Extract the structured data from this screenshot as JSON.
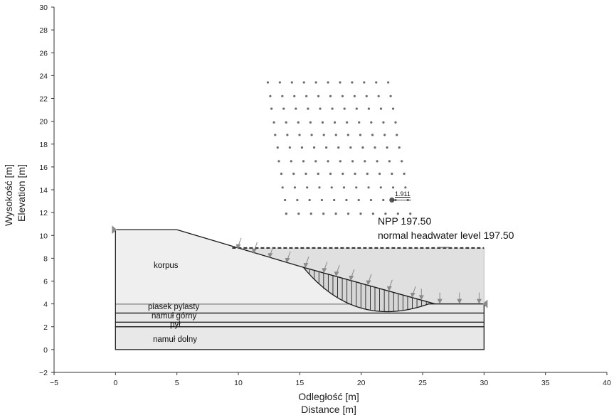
{
  "chart_data": {
    "type": "diagram",
    "x_axis": {
      "labels": [
        "Odległość [m]",
        "Distance [m]"
      ],
      "range": [
        -5,
        40
      ],
      "ticks": [
        -5,
        0,
        5,
        10,
        15,
        20,
        25,
        30,
        35,
        40
      ]
    },
    "y_axis": {
      "labels": [
        "Wysokość [m]",
        "Elevation [m]"
      ],
      "range": [
        -2,
        30
      ],
      "ticks": [
        -2,
        0,
        2,
        4,
        6,
        8,
        10,
        12,
        14,
        16,
        18,
        20,
        22,
        24,
        26,
        28,
        30
      ]
    },
    "layers": [
      {
        "name": "namuł dolny",
        "top": 2.0,
        "bottom": 0.0
      },
      {
        "name": "pył",
        "top": 2.4,
        "bottom": 2.0
      },
      {
        "name": "namuł górny",
        "top": 3.2,
        "bottom": 2.4
      },
      {
        "name": "piasek pylasty",
        "top": 4.0,
        "bottom": 3.2
      },
      {
        "name": "korpus",
        "top": 10.5,
        "bottom": 4.0
      }
    ],
    "dam_outline": [
      [
        0,
        10.5
      ],
      [
        5,
        10.5
      ],
      [
        15.3,
        7.2
      ],
      [
        26,
        4.0
      ],
      [
        30,
        4.0
      ]
    ],
    "water_level": {
      "elevation": 8.9,
      "x_range": [
        9.5,
        30
      ],
      "labels": [
        "NPP 197.50",
        "normal headwater level 197.50"
      ]
    },
    "slip_surface": {
      "entry": [
        15.3,
        7.2
      ],
      "exit": [
        25.5,
        4.0
      ],
      "factor_of_safety": "1.911",
      "center": [
        22.5,
        13.1
      ]
    },
    "slip_centers_grid": {
      "rows": [
        {
          "y": 23.4,
          "x_start": 12.4,
          "x_end": 22.2
        },
        {
          "y": 22.2,
          "x_start": 12.6,
          "x_end": 22.4
        },
        {
          "y": 21.1,
          "x_start": 12.7,
          "x_end": 22.6
        },
        {
          "y": 19.9,
          "x_start": 12.9,
          "x_end": 22.8
        },
        {
          "y": 18.8,
          "x_start": 13.0,
          "x_end": 22.9
        },
        {
          "y": 17.7,
          "x_start": 13.2,
          "x_end": 23.1
        },
        {
          "y": 16.5,
          "x_start": 13.3,
          "x_end": 23.3
        },
        {
          "y": 15.4,
          "x_start": 13.5,
          "x_end": 23.5
        },
        {
          "y": 14.2,
          "x_start": 13.6,
          "x_end": 23.6
        },
        {
          "y": 13.1,
          "x_start": 13.8,
          "x_end": 23.8
        },
        {
          "y": 11.9,
          "x_start": 13.9,
          "x_end": 24.0
        }
      ],
      "points_per_row": 11
    },
    "water_pressure_arrows_x": [
      10,
      11.3,
      12.6,
      14,
      15.5,
      17,
      18,
      19.2,
      20.6,
      22.3,
      24.2,
      24.9,
      26.4,
      28,
      29.6
    ]
  },
  "colors": {
    "dam_fill": "#efefef",
    "layer_fill": "#e8e8e8",
    "reservoir_fill": "#e0e0e0",
    "outline": "#1a1a1a",
    "grid_point": "#6a6a6a",
    "arrow": "#8a8a8a"
  }
}
